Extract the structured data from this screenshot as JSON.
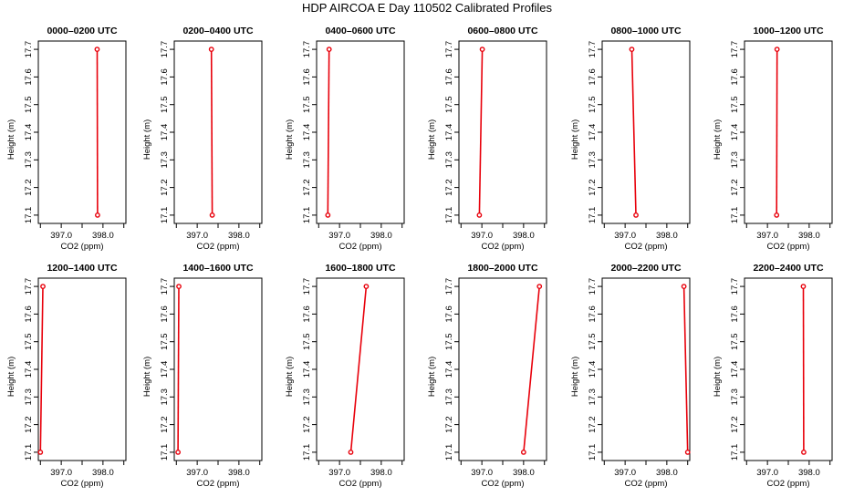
{
  "title": "HDP AIRCOA E  Day 110502  Calibrated Profiles",
  "chart_data": [
    {
      "type": "line",
      "title": "0000–0200 UTC",
      "xlabel": "CO2 (ppm)",
      "ylabel": "Height (m)",
      "xlim": [
        396.45,
        398.55
      ],
      "ylim": [
        17.07,
        17.73
      ],
      "xticks": [
        397.0,
        398.0
      ],
      "xtick_labels": [
        "397.0",
        "398.0"
      ],
      "yticks": [
        17.1,
        17.2,
        17.3,
        17.4,
        17.5,
        17.6,
        17.7
      ],
      "ytick_labels": [
        "17.1",
        "17.2",
        "17.3",
        "17.4",
        "17.5",
        "17.6",
        "17.7"
      ],
      "x": [
        397.87,
        397.86
      ],
      "y": [
        17.1,
        17.7
      ],
      "series_color": "#e8000b"
    },
    {
      "type": "line",
      "title": "0200–0400 UTC",
      "xlabel": "CO2 (ppm)",
      "ylabel": "Height (m)",
      "xlim": [
        396.45,
        398.55
      ],
      "ylim": [
        17.07,
        17.73
      ],
      "xticks": [
        397.0,
        398.0
      ],
      "xtick_labels": [
        "397.0",
        "398.0"
      ],
      "yticks": [
        17.1,
        17.2,
        17.3,
        17.4,
        17.5,
        17.6,
        17.7
      ],
      "ytick_labels": [
        "17.1",
        "17.2",
        "17.3",
        "17.4",
        "17.5",
        "17.6",
        "17.7"
      ],
      "x": [
        397.36,
        397.34
      ],
      "y": [
        17.1,
        17.7
      ],
      "series_color": "#e8000b"
    },
    {
      "type": "line",
      "title": "0400–0600 UTC",
      "xlabel": "CO2 (ppm)",
      "ylabel": "Height (m)",
      "xlim": [
        396.45,
        398.55
      ],
      "ylim": [
        17.07,
        17.73
      ],
      "xticks": [
        397.0,
        398.0
      ],
      "xtick_labels": [
        "397.0",
        "398.0"
      ],
      "yticks": [
        17.1,
        17.2,
        17.3,
        17.4,
        17.5,
        17.6,
        17.7
      ],
      "ytick_labels": [
        "17.1",
        "17.2",
        "17.3",
        "17.4",
        "17.5",
        "17.6",
        "17.7"
      ],
      "x": [
        396.72,
        396.75
      ],
      "y": [
        17.1,
        17.7
      ],
      "series_color": "#e8000b"
    },
    {
      "type": "line",
      "title": "0600–0800 UTC",
      "xlabel": "CO2 (ppm)",
      "ylabel": "Height (m)",
      "xlim": [
        396.45,
        398.55
      ],
      "ylim": [
        17.07,
        17.73
      ],
      "xticks": [
        397.0,
        398.0
      ],
      "xtick_labels": [
        "397.0",
        "398.0"
      ],
      "yticks": [
        17.1,
        17.2,
        17.3,
        17.4,
        17.5,
        17.6,
        17.7
      ],
      "ytick_labels": [
        "17.1",
        "17.2",
        "17.3",
        "17.4",
        "17.5",
        "17.6",
        "17.7"
      ],
      "x": [
        396.94,
        397.01
      ],
      "y": [
        17.1,
        17.7
      ],
      "series_color": "#e8000b"
    },
    {
      "type": "line",
      "title": "0800–1000 UTC",
      "xlabel": "CO2 (ppm)",
      "ylabel": "Height (m)",
      "xlim": [
        396.45,
        398.55
      ],
      "ylim": [
        17.07,
        17.73
      ],
      "xticks": [
        397.0,
        398.0
      ],
      "xtick_labels": [
        "397.0",
        "398.0"
      ],
      "yticks": [
        17.1,
        17.2,
        17.3,
        17.4,
        17.5,
        17.6,
        17.7
      ],
      "ytick_labels": [
        "17.1",
        "17.2",
        "17.3",
        "17.4",
        "17.5",
        "17.6",
        "17.7"
      ],
      "x": [
        397.26,
        397.16
      ],
      "y": [
        17.1,
        17.7
      ],
      "series_color": "#e8000b"
    },
    {
      "type": "line",
      "title": "1000–1200 UTC",
      "xlabel": "CO2 (ppm)",
      "ylabel": "Height (m)",
      "xlim": [
        396.45,
        398.55
      ],
      "ylim": [
        17.07,
        17.73
      ],
      "xticks": [
        397.0,
        398.0
      ],
      "xtick_labels": [
        "397.0",
        "398.0"
      ],
      "yticks": [
        17.1,
        17.2,
        17.3,
        17.4,
        17.5,
        17.6,
        17.7
      ],
      "ytick_labels": [
        "17.1",
        "17.2",
        "17.3",
        "17.4",
        "17.5",
        "17.6",
        "17.7"
      ],
      "x": [
        397.22,
        397.23
      ],
      "y": [
        17.1,
        17.7
      ],
      "series_color": "#e8000b"
    },
    {
      "type": "line",
      "title": "1200–1400 UTC",
      "xlabel": "CO2 (ppm)",
      "ylabel": "Height (m)",
      "xlim": [
        396.45,
        398.55
      ],
      "ylim": [
        17.07,
        17.73
      ],
      "xticks": [
        397.0,
        398.0
      ],
      "xtick_labels": [
        "397.0",
        "398.0"
      ],
      "yticks": [
        17.1,
        17.2,
        17.3,
        17.4,
        17.5,
        17.6,
        17.7
      ],
      "ytick_labels": [
        "17.1",
        "17.2",
        "17.3",
        "17.4",
        "17.5",
        "17.6",
        "17.7"
      ],
      "x": [
        396.5,
        396.56
      ],
      "y": [
        17.1,
        17.7
      ],
      "series_color": "#e8000b"
    },
    {
      "type": "line",
      "title": "1400–1600 UTC",
      "xlabel": "CO2 (ppm)",
      "ylabel": "Height (m)",
      "xlim": [
        396.45,
        398.55
      ],
      "ylim": [
        17.07,
        17.73
      ],
      "xticks": [
        397.0,
        398.0
      ],
      "xtick_labels": [
        "397.0",
        "398.0"
      ],
      "yticks": [
        17.1,
        17.2,
        17.3,
        17.4,
        17.5,
        17.6,
        17.7
      ],
      "ytick_labels": [
        "17.1",
        "17.2",
        "17.3",
        "17.4",
        "17.5",
        "17.6",
        "17.7"
      ],
      "x": [
        396.54,
        396.56
      ],
      "y": [
        17.1,
        17.7
      ],
      "series_color": "#e8000b"
    },
    {
      "type": "line",
      "title": "1600–1800 UTC",
      "xlabel": "CO2 (ppm)",
      "ylabel": "Height (m)",
      "xlim": [
        396.45,
        398.55
      ],
      "ylim": [
        17.07,
        17.73
      ],
      "xticks": [
        397.0,
        398.0
      ],
      "xtick_labels": [
        "397.0",
        "398.0"
      ],
      "yticks": [
        17.1,
        17.2,
        17.3,
        17.4,
        17.5,
        17.6,
        17.7
      ],
      "ytick_labels": [
        "17.1",
        "17.2",
        "17.3",
        "17.4",
        "17.5",
        "17.6",
        "17.7"
      ],
      "x": [
        397.27,
        397.64
      ],
      "y": [
        17.1,
        17.7
      ],
      "series_color": "#e8000b"
    },
    {
      "type": "line",
      "title": "1800–2000 UTC",
      "xlabel": "CO2 (ppm)",
      "ylabel": "Height (m)",
      "xlim": [
        396.45,
        398.55
      ],
      "ylim": [
        17.07,
        17.73
      ],
      "xticks": [
        397.0,
        398.0
      ],
      "xtick_labels": [
        "397.0",
        "398.0"
      ],
      "yticks": [
        17.1,
        17.2,
        17.3,
        17.4,
        17.5,
        17.6,
        17.7
      ],
      "ytick_labels": [
        "17.1",
        "17.2",
        "17.3",
        "17.4",
        "17.5",
        "17.6",
        "17.7"
      ],
      "x": [
        398.0,
        398.38
      ],
      "y": [
        17.1,
        17.7
      ],
      "series_color": "#e8000b"
    },
    {
      "type": "line",
      "title": "2000–2200 UTC",
      "xlabel": "CO2 (ppm)",
      "ylabel": "Height (m)",
      "xlim": [
        396.45,
        398.55
      ],
      "ylim": [
        17.07,
        17.73
      ],
      "xticks": [
        397.0,
        398.0
      ],
      "xtick_labels": [
        "397.0",
        "398.0"
      ],
      "yticks": [
        17.1,
        17.2,
        17.3,
        17.4,
        17.5,
        17.6,
        17.7
      ],
      "ytick_labels": [
        "17.1",
        "17.2",
        "17.3",
        "17.4",
        "17.5",
        "17.6",
        "17.7"
      ],
      "x": [
        398.5,
        398.41
      ],
      "y": [
        17.1,
        17.7
      ],
      "series_color": "#e8000b"
    },
    {
      "type": "line",
      "title": "2200–2400 UTC",
      "xlabel": "CO2 (ppm)",
      "ylabel": "Height (m)",
      "xlim": [
        396.45,
        398.55
      ],
      "ylim": [
        17.07,
        17.73
      ],
      "xticks": [
        397.0,
        398.0
      ],
      "xtick_labels": [
        "397.0",
        "398.0"
      ],
      "yticks": [
        17.1,
        17.2,
        17.3,
        17.4,
        17.5,
        17.6,
        17.7
      ],
      "ytick_labels": [
        "17.1",
        "17.2",
        "17.3",
        "17.4",
        "17.5",
        "17.6",
        "17.7"
      ],
      "x": [
        397.87,
        397.86
      ],
      "y": [
        17.1,
        17.7
      ],
      "series_color": "#e8000b"
    }
  ]
}
